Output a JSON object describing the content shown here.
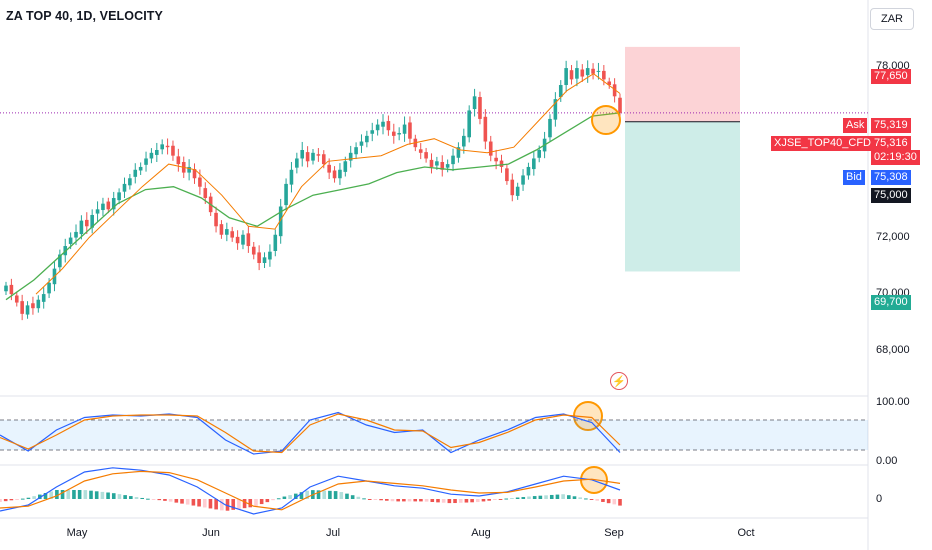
{
  "header": {
    "title": "ZA TOP 40, 1D, VELOCITY",
    "currency": "ZAR"
  },
  "colors": {
    "up": "#26a69a",
    "down": "#ef5350",
    "ma": "#4caf50",
    "ema": "#f57c00",
    "stoch_k": "#2962ff",
    "stoch_d": "#f57c00",
    "stop": "#f23645",
    "target": "#22ab94"
  },
  "price_axis": {
    "ticks": [
      "78,000",
      "72,000",
      "70,000",
      "68,000"
    ]
  },
  "price_labels": {
    "stop": "77,650",
    "ask_tag": "Ask",
    "ask": "75,319",
    "symbol": "XJSE_TOP40_CFD",
    "last": "75,316",
    "countdown": "02:19:30",
    "bid_tag": "Bid",
    "bid": "75,308",
    "entry": "75,000",
    "target": "69,700"
  },
  "stoch_axis": {
    "ticks": [
      "100.00",
      "0.00"
    ]
  },
  "macd_axis": {
    "ticks": [
      "0"
    ]
  },
  "time_axis": {
    "ticks": [
      "May",
      "Jun",
      "Jul",
      "Aug",
      "Sep",
      "Oct"
    ]
  },
  "chart_data": {
    "type": "candlestick",
    "title": "ZA TOP 40, 1D, VELOCITY",
    "ylim": [
      67300,
      78700
    ],
    "series": [
      {
        "name": "Price",
        "note": "approx. daily closes, ~Apr 8 to Sep 2",
        "values": [
          69200,
          68900,
          68600,
          68200,
          68500,
          68400,
          68700,
          68900,
          69300,
          69800,
          70300,
          70600,
          70900,
          71100,
          71500,
          71300,
          71700,
          71900,
          72100,
          71900,
          72300,
          72500,
          72800,
          73000,
          73300,
          73400,
          73700,
          73900,
          74000,
          74200,
          74100,
          73800,
          73500,
          73200,
          73400,
          73000,
          72700,
          72300,
          71800,
          71300,
          71000,
          71200,
          70900,
          70700,
          71000,
          70600,
          70300,
          70000,
          70200,
          70400,
          71000,
          72000,
          72800,
          73300,
          73700,
          74000,
          73600,
          73900,
          73800,
          73500,
          73200,
          73000,
          73300,
          73600,
          73900,
          74100,
          74300,
          74500,
          74700,
          74900,
          75000,
          74700,
          74500,
          74600,
          74900,
          74400,
          74100,
          73900,
          73700,
          73400,
          73600,
          73300,
          73500,
          73800,
          74100,
          74500,
          75400,
          75900,
          75100,
          74300,
          73800,
          73600,
          73400,
          72900,
          72400,
          72700,
          73100,
          73400,
          73700,
          74000,
          74400,
          75100,
          75800,
          76300,
          76900,
          76500,
          76900,
          76600,
          76900,
          76700,
          76800,
          76500,
          76300,
          75900,
          75316
        ]
      },
      {
        "name": "MA",
        "values": [
          68700,
          69400,
          70300,
          71200,
          72100,
          72600,
          72700,
          72300,
          71600,
          71300,
          71900,
          72400,
          72600,
          72800,
          73200,
          73400,
          73300,
          73400,
          73500,
          74000,
          74600,
          75200,
          75316
        ]
      },
      {
        "name": "EMA",
        "values": [
          68900,
          69800,
          70900,
          71800,
          72700,
          73500,
          73300,
          72400,
          71300,
          71200,
          72700,
          73600,
          73700,
          73800,
          74200,
          74400,
          74000,
          73900,
          74100,
          75100,
          76100,
          76700,
          76000
        ]
      },
      {
        "name": "Stochastic %K",
        "values": [
          50,
          18,
          60,
          85,
          90,
          88,
          92,
          85,
          40,
          12,
          18,
          80,
          95,
          70,
          55,
          60,
          15,
          40,
          60,
          85,
          92,
          75,
          15
        ]
      },
      {
        "name": "Stochastic %D",
        "values": [
          45,
          22,
          50,
          80,
          88,
          90,
          90,
          88,
          55,
          18,
          15,
          70,
          92,
          80,
          60,
          58,
          25,
          35,
          55,
          80,
          90,
          85,
          30
        ]
      },
      {
        "name": "MACD",
        "values": [
          -200,
          -100,
          200,
          450,
          520,
          480,
          400,
          200,
          -100,
          -250,
          -150,
          200,
          380,
          300,
          220,
          180,
          80,
          50,
          120,
          250,
          380,
          320,
          150
        ]
      },
      {
        "name": "Signal",
        "values": [
          -150,
          -120,
          50,
          300,
          420,
          460,
          440,
          320,
          100,
          -120,
          -180,
          50,
          250,
          300,
          260,
          220,
          150,
          100,
          110,
          200,
          300,
          330,
          260
        ]
      }
    ],
    "stoch_levels": [
      80,
      20
    ],
    "position": {
      "type": "short",
      "entry": 75000,
      "stop": 77650,
      "target": 69700
    },
    "x_ticks": [
      "May",
      "Jun",
      "Jul",
      "Aug",
      "Sep",
      "Oct"
    ]
  }
}
